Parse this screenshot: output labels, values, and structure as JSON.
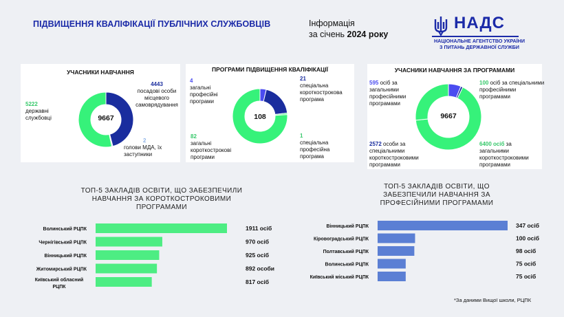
{
  "header": {
    "title": "ПІДВИЩЕННЯ КВАЛІФІКАЦІЇ ПУБЛІЧНИХ СЛУЖБОВЦІВ",
    "info_line1": "Інформація",
    "info_line2_prefix": "за січень ",
    "info_line2_bold": "2024 року",
    "logo_name": "НАДС",
    "logo_line1": "НАЦІОНАЛЬНЕ АГЕНТСТВО УКРАЇНИ",
    "logo_line2": "З ПИТАНЬ ДЕРЖАВНОЇ СЛУЖБИ"
  },
  "colors": {
    "green": "#36f27a",
    "navy": "#1a2d9e",
    "periwinkle": "#4a4cf0",
    "light_blue": "#8fb4e8",
    "bar_green": "#4ded83",
    "bar_blue": "#5b7fd4"
  },
  "chart_data": [
    {
      "type": "pie",
      "title": "УЧАСНИКИ НАВЧАННЯ",
      "center": "9667",
      "slices": [
        {
          "value": 4443,
          "label": "посадові особи місцевого самоврядування"
        },
        {
          "value": 2,
          "label": "голови МДА, їх заступники"
        },
        {
          "value": 5222,
          "label": "державні службовці"
        }
      ]
    },
    {
      "type": "pie",
      "title": "ПРОГРАМИ ПІДВИЩЕННЯ КВАЛІФІКАЦІЇ",
      "center": "108",
      "slices": [
        {
          "value": 4,
          "label": "загальні професійні програми"
        },
        {
          "value": 21,
          "label": "спеціальна короткострокова програма"
        },
        {
          "value": 1,
          "label": "спеціальна професійна програма"
        },
        {
          "value": 82,
          "label": "загальні короткострокові програми"
        }
      ]
    },
    {
      "type": "pie",
      "title": "УЧАСНИКИ НАВЧАННЯ ЗА ПРОГРАМАМИ",
      "center": "9667",
      "slices": [
        {
          "value": 595,
          "value_text": "595",
          "label": "осіб за загальними професійними програмами"
        },
        {
          "value": 100,
          "value_text": "100",
          "label": "осіб за спеціальними професійними програмами"
        },
        {
          "value": 6400,
          "value_text": "6400 осіб",
          "label": "за загальними короткостроковими програмами"
        },
        {
          "value": 2572,
          "value_text": "2572",
          "label": "особи за спеціальними короткостроковими програмами"
        }
      ]
    },
    {
      "type": "bar",
      "title": "ТОП-5 ЗАКЛАДІВ ОСВІТИ, ЩО ЗАБЕЗПЕЧИЛИ НАВЧАННЯ ЗА КОРОТКОСТРОКОВИМИ ПРОГРАМАМИ",
      "categories": [
        "Волинський РЦПК",
        "Чернігівський РЦПК",
        "Вінницький РЦПК",
        "Житомирський РЦПК",
        "Київський обласний РЦПК"
      ],
      "values": [
        1911,
        970,
        925,
        892,
        817
      ],
      "value_labels": [
        "1911 осіб",
        "970 осіб",
        "925 осіб",
        "892 особи",
        "817 осіб"
      ]
    },
    {
      "type": "bar",
      "title": "ТОП-5 ЗАКЛАДІВ ОСВІТИ, ЩО ЗАБЕЗПЕЧИЛИ НАВЧАННЯ ЗА ПРОФЕСІЙНИМИ ПРОГРАМАМИ",
      "categories": [
        "Вінницький РЦПК",
        "Кіровоградський РЦПК",
        "Полтавський РЦПК",
        "Волинський РЦПК",
        "Київський міський РЦПК"
      ],
      "values": [
        347,
        100,
        98,
        75,
        75
      ],
      "value_labels": [
        "347 осіб",
        "100 осіб",
        "98 осіб",
        "75 осіб",
        "75 осіб"
      ]
    }
  ],
  "footnote": "*За даними Вищої школи, РЦПК"
}
